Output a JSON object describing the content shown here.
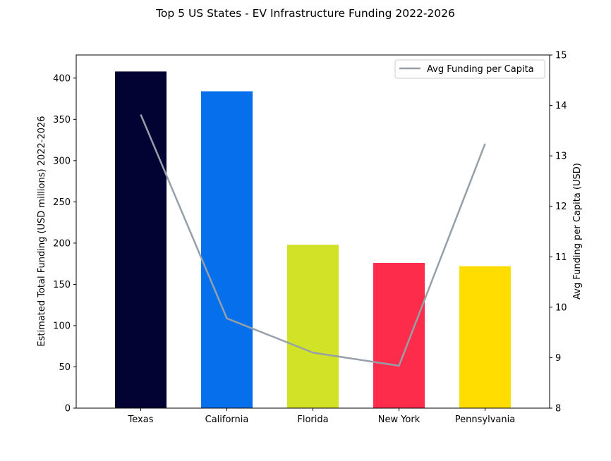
{
  "chart_data": {
    "type": "bar",
    "title": "Top 5 US States - EV Infrastructure Funding 2022-2026",
    "categories": [
      "Texas",
      "California",
      "Florida",
      "New York",
      "Pennsylvania"
    ],
    "series": [
      {
        "type": "bar",
        "axis": "left",
        "values": [
          408,
          384,
          198,
          176,
          172
        ],
        "colors": [
          "#020233",
          "#0670ec",
          "#d2e227",
          "#fc2c4a",
          "#ffdd00"
        ]
      },
      {
        "type": "line",
        "axis": "right",
        "name": "Avg Funding per Capita",
        "values": [
          13.82,
          9.78,
          9.1,
          8.84,
          13.24
        ],
        "color": "#96a0a8"
      }
    ],
    "ylabel": "Estimated Total Funding (USD millions) 2022-2026",
    "ylim": [
      0,
      428
    ],
    "yticks": [
      0,
      50,
      100,
      150,
      200,
      250,
      300,
      350,
      400
    ],
    "y2label": "Avg Funding per Capita (USD)",
    "y2lim": [
      8,
      15
    ],
    "y2ticks": [
      8,
      9,
      10,
      11,
      12,
      13,
      14,
      15
    ],
    "legend": {
      "position": "top-right",
      "entries": [
        "Avg Funding per Capita"
      ]
    },
    "grid": false
  }
}
